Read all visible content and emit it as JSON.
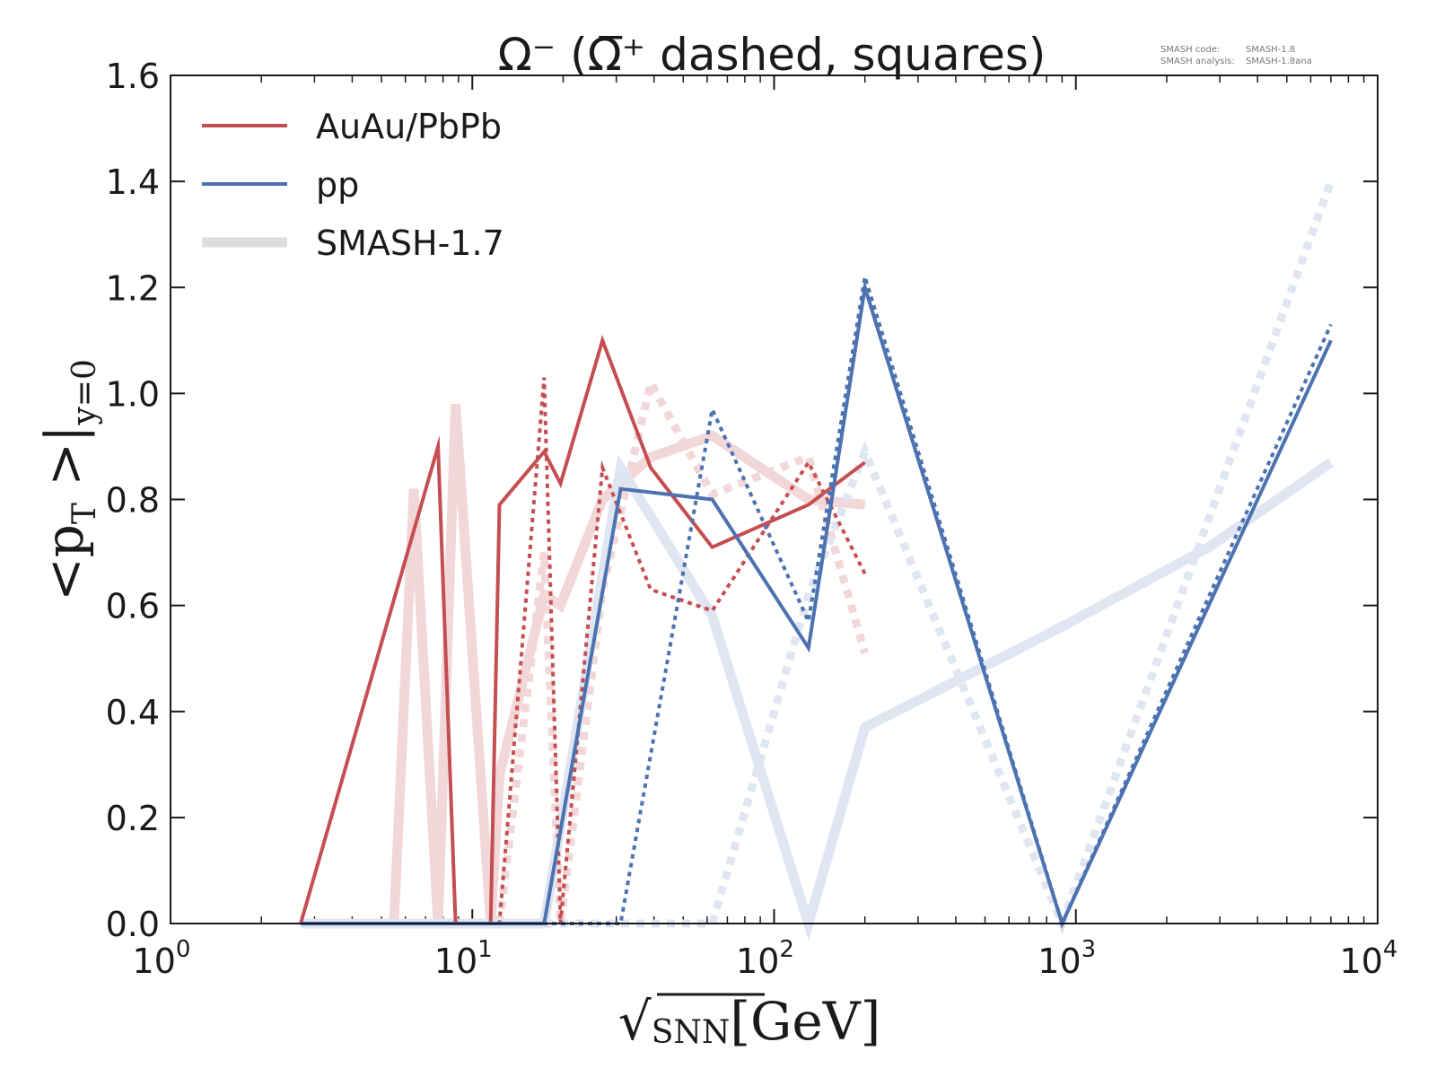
{
  "chart_data": {
    "type": "line",
    "title": "Ω⁻ (Ω̅⁺ dashed, squares)",
    "xlabel": "√s_NN [GeV]",
    "xlabel_parts": {
      "root": "√",
      "sub": "SNN",
      "unit": "[GeV]"
    },
    "ylabel": "<pT >|y=0",
    "ylabel_parts": {
      "open": "<p",
      "sub_t": "T",
      "close": " >|",
      "sub_y": "y=0"
    },
    "x_scale": "log",
    "xlim": [
      1,
      10000
    ],
    "ylim": [
      0,
      1.6
    ],
    "yticks": [
      0.0,
      0.2,
      0.4,
      0.6,
      0.8,
      1.0,
      1.2,
      1.4,
      1.6
    ],
    "ytick_labels": [
      "0.0",
      "0.2",
      "0.4",
      "0.6",
      "0.8",
      "1.0",
      "1.2",
      "1.4",
      "1.6"
    ],
    "xticks": [
      {
        "value": 1,
        "base": "10",
        "exp": "0"
      },
      {
        "value": 10,
        "base": "10",
        "exp": "1"
      },
      {
        "value": 100,
        "base": "10",
        "exp": "2"
      },
      {
        "value": 1000,
        "base": "10",
        "exp": "3"
      },
      {
        "value": 10000,
        "base": "10",
        "exp": "4"
      }
    ],
    "legend": {
      "position": "top-left",
      "entries": [
        {
          "label": "AuAu/PbPb",
          "color": "#c44e52",
          "style": "solid"
        },
        {
          "label": "pp",
          "color": "#4c72b0",
          "style": "solid"
        },
        {
          "label": "SMASH-1.7",
          "color": "#dddddd",
          "style": "thick"
        }
      ]
    },
    "annotation": {
      "lines": [
        {
          "key": "SMASH code:",
          "value": "SMASH-1.8"
        },
        {
          "key": "SMASH analysis:",
          "value": "SMASH-1.8ana"
        }
      ]
    },
    "series": [
      {
        "name": "SMASH-1.7 AuAu/PbPb Ω⁻",
        "group": "smash",
        "color": "#f2d7d8",
        "style": "thick",
        "x": [
          2.7,
          5.5,
          6.4,
          7.7,
          8.8,
          11.5,
          12.3,
          17.3,
          19.6,
          27,
          39,
          62.4,
          130,
          200
        ],
        "y": [
          0,
          0,
          0.82,
          0,
          0.98,
          0,
          0.28,
          0.62,
          0.6,
          0.8,
          0.88,
          0.92,
          0.8,
          0.79
        ]
      },
      {
        "name": "SMASH-1.7 AuAu/PbPb Ω̅⁺",
        "group": "smash",
        "color": "#f2d7d8",
        "style": "thick-dashed",
        "x": [
          2.7,
          6.4,
          7.7,
          8.8,
          11.5,
          12.3,
          17.3,
          19.6,
          27,
          39,
          62.4,
          130,
          200
        ],
        "y": [
          0,
          0,
          0,
          0,
          0,
          0,
          0.7,
          0,
          0.63,
          1.02,
          0.81,
          0.88,
          0.51
        ]
      },
      {
        "name": "SMASH-1.7 pp Ω⁻",
        "group": "smash",
        "color": "#dfe5f1",
        "style": "thick",
        "x": [
          2.7,
          17.3,
          31,
          62.4,
          130,
          200,
          900,
          2760,
          7000
        ],
        "y": [
          0,
          0,
          0.86,
          0.58,
          0,
          0.37,
          0.56,
          0.71,
          0.87
        ]
      },
      {
        "name": "SMASH-1.7 pp Ω̅⁺",
        "group": "smash",
        "color": "#dfe5f1",
        "style": "thick-dashed",
        "x": [
          2.7,
          17.3,
          19.6,
          31,
          62.4,
          130,
          200,
          900,
          7000
        ],
        "y": [
          0,
          0,
          0,
          0,
          0,
          0.62,
          0.89,
          0,
          1.4
        ]
      },
      {
        "name": "AuAu/PbPb Ω⁻",
        "group": "current",
        "color": "#c44e52",
        "style": "solid",
        "x": [
          2.7,
          7.7,
          8.8,
          11.5,
          12.3,
          17.3,
          19.6,
          27,
          39,
          62.4,
          130,
          200
        ],
        "y": [
          0,
          0.9,
          0,
          0,
          0.79,
          0.89,
          0.83,
          1.1,
          0.86,
          0.71,
          0.79,
          0.87
        ]
      },
      {
        "name": "AuAu/PbPb Ω̅⁺",
        "group": "current",
        "color": "#c44e52",
        "style": "dashed",
        "x": [
          2.7,
          12.3,
          17.3,
          19.6,
          27,
          39,
          62.4,
          130,
          200
        ],
        "y": [
          0,
          0,
          1.03,
          0,
          0.86,
          0.63,
          0.59,
          0.87,
          0.66
        ]
      },
      {
        "name": "pp Ω⁻",
        "group": "current",
        "color": "#4c72b0",
        "style": "solid",
        "x": [
          2.7,
          17.3,
          31,
          62.4,
          130,
          200,
          900,
          7000
        ],
        "y": [
          0,
          0,
          0.82,
          0.8,
          0.52,
          1.2,
          0,
          1.1
        ]
      },
      {
        "name": "pp Ω̅⁺",
        "group": "current",
        "color": "#4c72b0",
        "style": "dashed",
        "x": [
          2.7,
          31,
          62.4,
          130,
          200,
          900,
          7000
        ],
        "y": [
          0,
          0,
          0.97,
          0.57,
          1.22,
          0,
          1.13
        ]
      }
    ]
  }
}
